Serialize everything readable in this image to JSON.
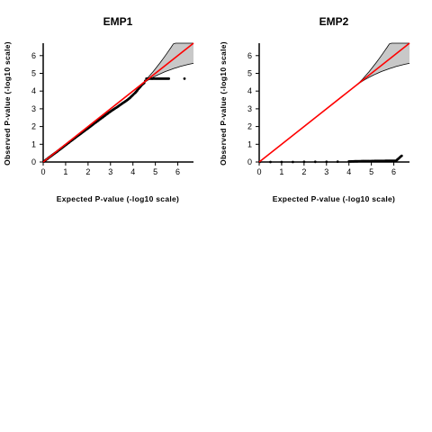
{
  "chart_data": [
    {
      "type": "scatter",
      "title": "EMP1",
      "xlabel": "Expected P-value (-log10 scale)",
      "ylabel": "Observed P-value (-log10 scale)",
      "xlim": [
        0,
        6.7
      ],
      "ylim": [
        0,
        6.7
      ],
      "xticks": [
        "0",
        "1",
        "2",
        "3",
        "4",
        "5",
        "6"
      ],
      "yticks": [
        "0",
        "1",
        "2",
        "3",
        "4",
        "5",
        "6"
      ],
      "reference_line": {
        "color": "#ff0000",
        "slope": 1,
        "intercept": 0
      },
      "confidence_band": {
        "fill": "#c8c8c8",
        "from_x": 4.3
      },
      "series": [
        {
          "x": [
            0.02,
            0.3,
            0.6,
            0.9,
            1.2,
            1.5,
            1.8,
            2.1,
            2.4,
            2.7,
            3.0,
            3.3,
            3.5,
            3.7,
            3.85,
            4.0,
            4.1,
            4.2,
            4.3,
            4.4,
            4.5,
            4.6,
            4.7,
            4.8,
            4.9,
            5.0,
            5.2,
            5.4,
            5.6,
            6.3
          ],
          "y": [
            0.02,
            0.29,
            0.57,
            0.86,
            1.15,
            1.44,
            1.72,
            2.0,
            2.29,
            2.57,
            2.85,
            3.1,
            3.28,
            3.45,
            3.6,
            3.78,
            3.9,
            4.05,
            4.2,
            4.35,
            4.45,
            4.7,
            4.7,
            4.7,
            4.7,
            4.7,
            4.7,
            4.7,
            4.7,
            4.7
          ]
        }
      ]
    },
    {
      "type": "scatter",
      "title": "EMP2",
      "xlabel": "Expected P-value (-log10 scale)",
      "ylabel": "Observed P-value (-log10 scale)",
      "xlim": [
        0,
        6.7
      ],
      "ylim": [
        0,
        6.7
      ],
      "xticks": [
        "0",
        "1",
        "2",
        "3",
        "4",
        "5",
        "6"
      ],
      "yticks": [
        "0",
        "1",
        "2",
        "3",
        "4",
        "5",
        "6"
      ],
      "reference_line": {
        "color": "#ff0000",
        "slope": 1,
        "intercept": 0
      },
      "confidence_band": {
        "fill": "#c8c8c8",
        "from_x": 4.3
      },
      "series": [
        {
          "x": [
            0.02,
            0.5,
            1.0,
            1.5,
            2.0,
            2.5,
            3.0,
            3.5,
            4.0,
            4.3,
            4.6,
            4.9,
            5.2,
            5.5,
            5.8,
            6.1,
            6.35
          ],
          "y": [
            0.0,
            0.0,
            0.0,
            0.0,
            0.01,
            0.01,
            0.01,
            0.02,
            0.03,
            0.04,
            0.05,
            0.05,
            0.06,
            0.06,
            0.07,
            0.07,
            0.35
          ]
        }
      ]
    }
  ]
}
